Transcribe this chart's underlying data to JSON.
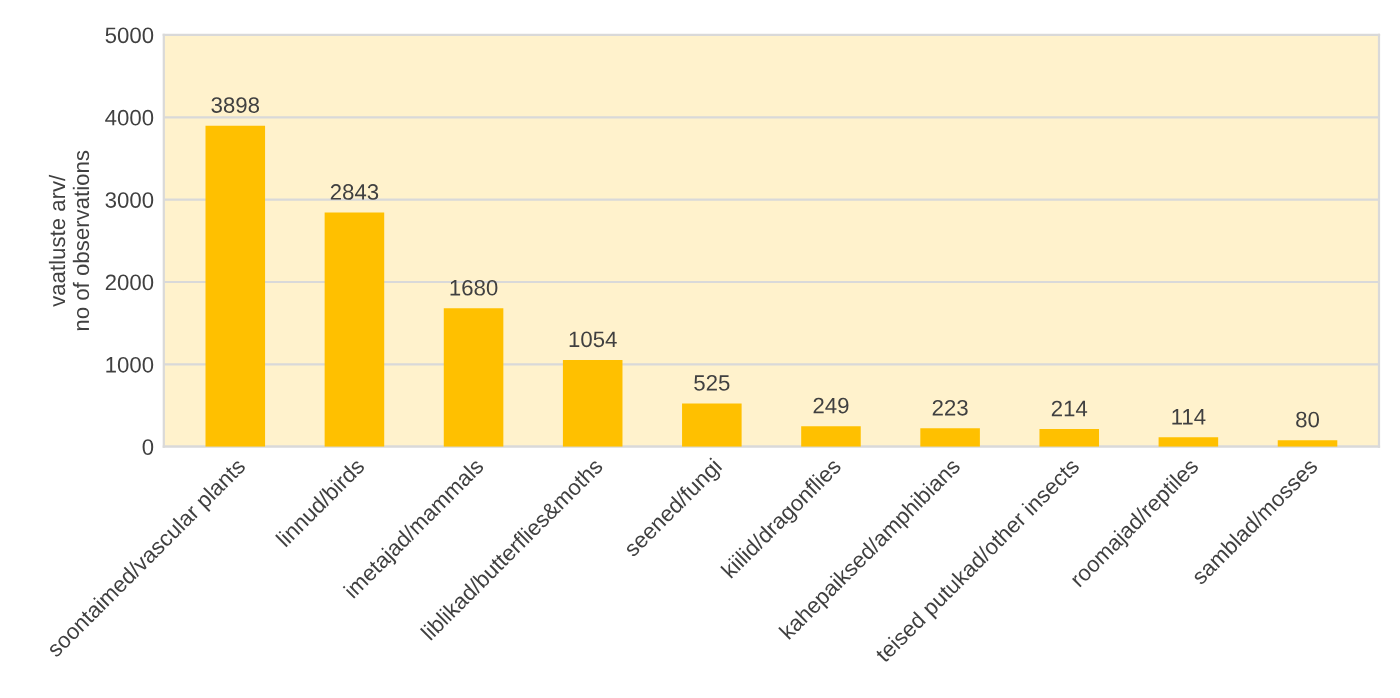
{
  "chart_data": {
    "type": "bar",
    "ylabel": "vaatluste arv/\nno of observations",
    "categories": [
      "soontaimed/vascular plants",
      "linnud/birds",
      "imetajad/mammals",
      "liblikad/butterflies&moths",
      "seened/fungi",
      "kiilid/dragonflies",
      "kahepaiksed/amphibians",
      "teised putukad/other insects",
      "roomajad/reptiles",
      "samblad/mosses"
    ],
    "values": [
      3898,
      2843,
      1680,
      1054,
      525,
      249,
      223,
      214,
      114,
      80
    ],
    "color": "#ffc000",
    "ylim": [
      0,
      5000
    ],
    "yticks": [
      0,
      1000,
      2000,
      3000,
      4000,
      5000
    ],
    "grid": "y",
    "data_labels": true
  }
}
